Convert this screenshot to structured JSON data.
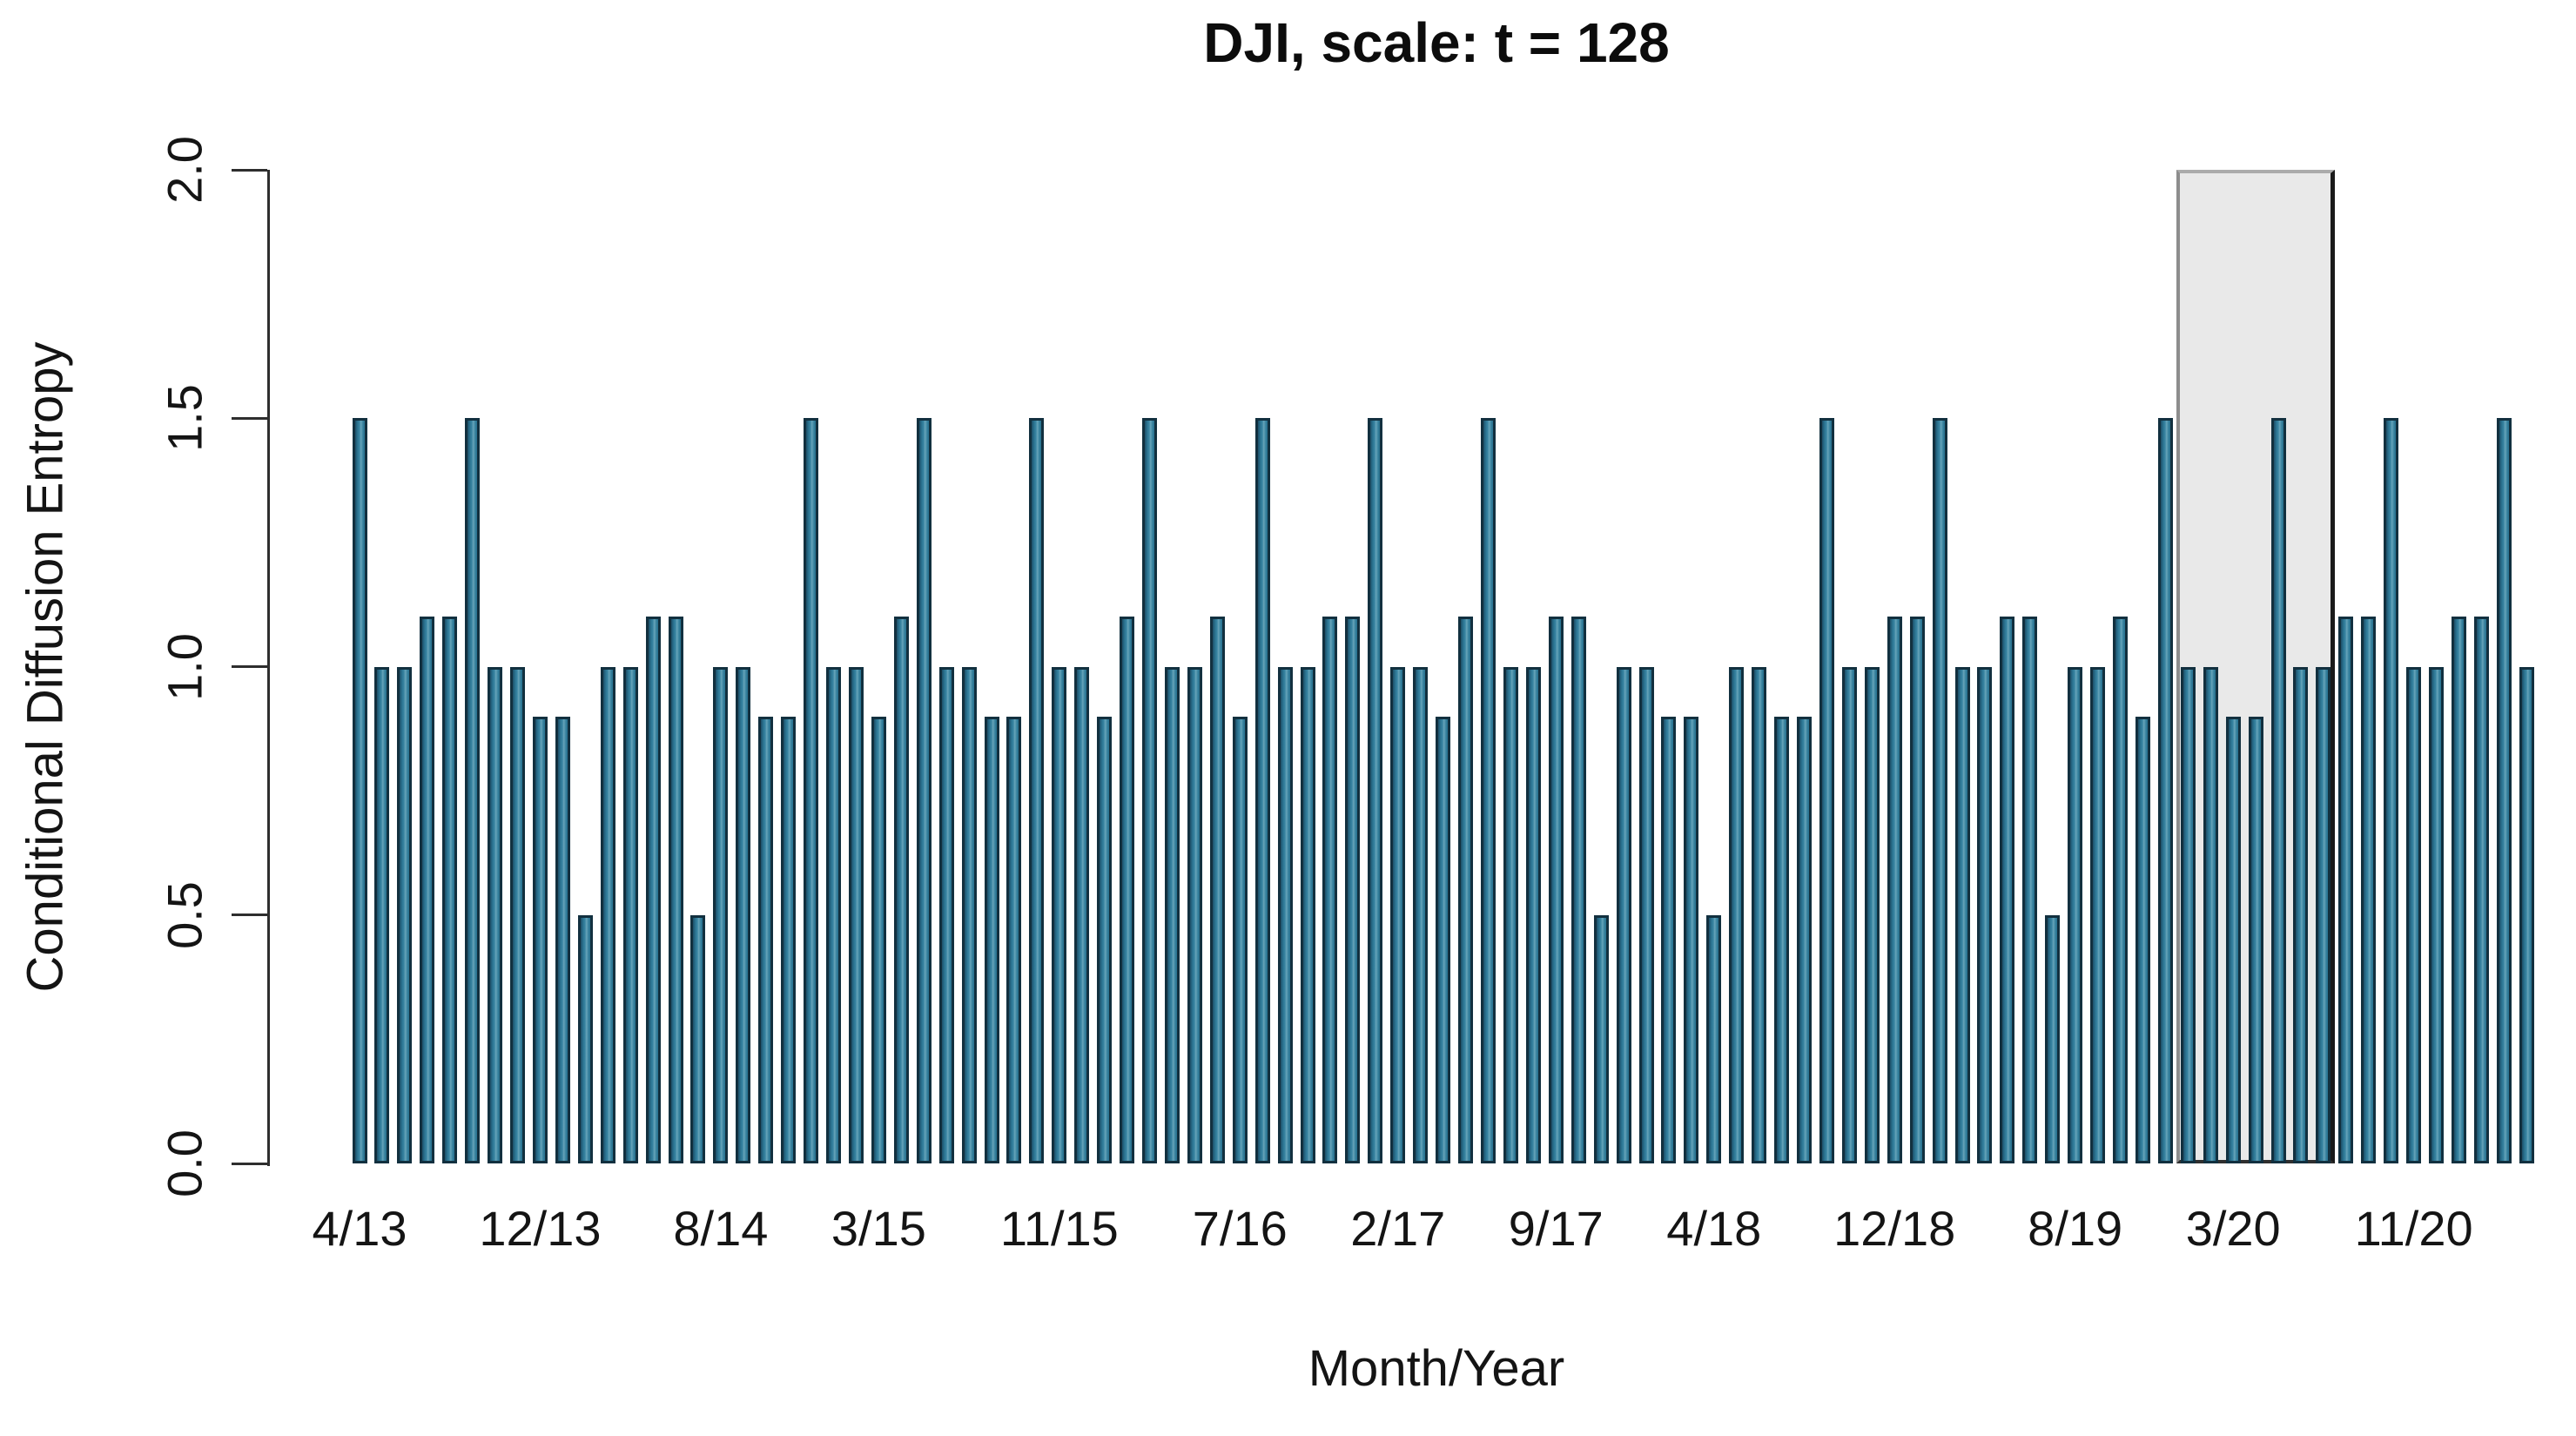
{
  "chart_data": {
    "type": "bar",
    "title": "DJI, scale: t = 128",
    "xlabel": "Month/Year",
    "ylabel": "Conditional Diffusion Entropy",
    "ylim": [
      0,
      2
    ],
    "grid": false,
    "legend": false,
    "ytick_values": [
      0.0,
      0.5,
      1.0,
      1.5,
      2.0
    ],
    "ytick_labels": [
      "0.0",
      "0.5",
      "1.0",
      "1.5",
      "2.0"
    ],
    "xtick_labels": [
      "4/13",
      "12/13",
      "8/14",
      "3/15",
      "11/15",
      "7/16",
      "2/17",
      "9/17",
      "4/18",
      "12/18",
      "8/19",
      "3/20",
      "11/20"
    ],
    "xtick_bar_indices": [
      0,
      8,
      16,
      23,
      31,
      39,
      46,
      53,
      60,
      68,
      76,
      83,
      91
    ],
    "values": [
      1.5,
      1.0,
      1.0,
      1.1,
      1.1,
      1.5,
      1.0,
      1.0,
      0.9,
      0.9,
      0.5,
      1.0,
      1.0,
      1.1,
      1.1,
      0.5,
      1.0,
      1.0,
      0.9,
      0.9,
      1.5,
      1.0,
      1.0,
      0.9,
      1.1,
      1.5,
      1.0,
      1.0,
      0.9,
      0.9,
      1.5,
      1.0,
      1.0,
      0.9,
      1.1,
      1.5,
      1.0,
      1.0,
      1.1,
      0.9,
      1.5,
      1.0,
      1.0,
      1.1,
      1.1,
      1.5,
      1.0,
      1.0,
      0.9,
      1.1,
      1.5,
      1.0,
      1.0,
      1.1,
      1.1,
      0.5,
      1.0,
      1.0,
      0.9,
      0.9,
      0.5,
      1.0,
      1.0,
      0.9,
      0.9,
      1.5,
      1.0,
      1.0,
      1.1,
      1.1,
      1.5,
      1.0,
      1.0,
      1.1,
      1.1,
      0.5,
      1.0,
      1.0,
      1.1,
      0.9,
      1.5,
      1.0,
      1.0,
      0.9,
      0.9,
      1.5,
      1.0,
      1.0,
      1.1,
      1.1,
      1.5,
      1.0,
      1.0,
      1.1,
      1.1,
      1.5,
      1.0
    ],
    "bar_color": "#2c7694",
    "bar_edge_color": "#12303f",
    "highlight_region": {
      "start_bar_index": 81,
      "end_bar_index": 87,
      "covers_full_y_range": true,
      "fill": "#e9e9e9",
      "border": "#1a1a1a"
    }
  }
}
